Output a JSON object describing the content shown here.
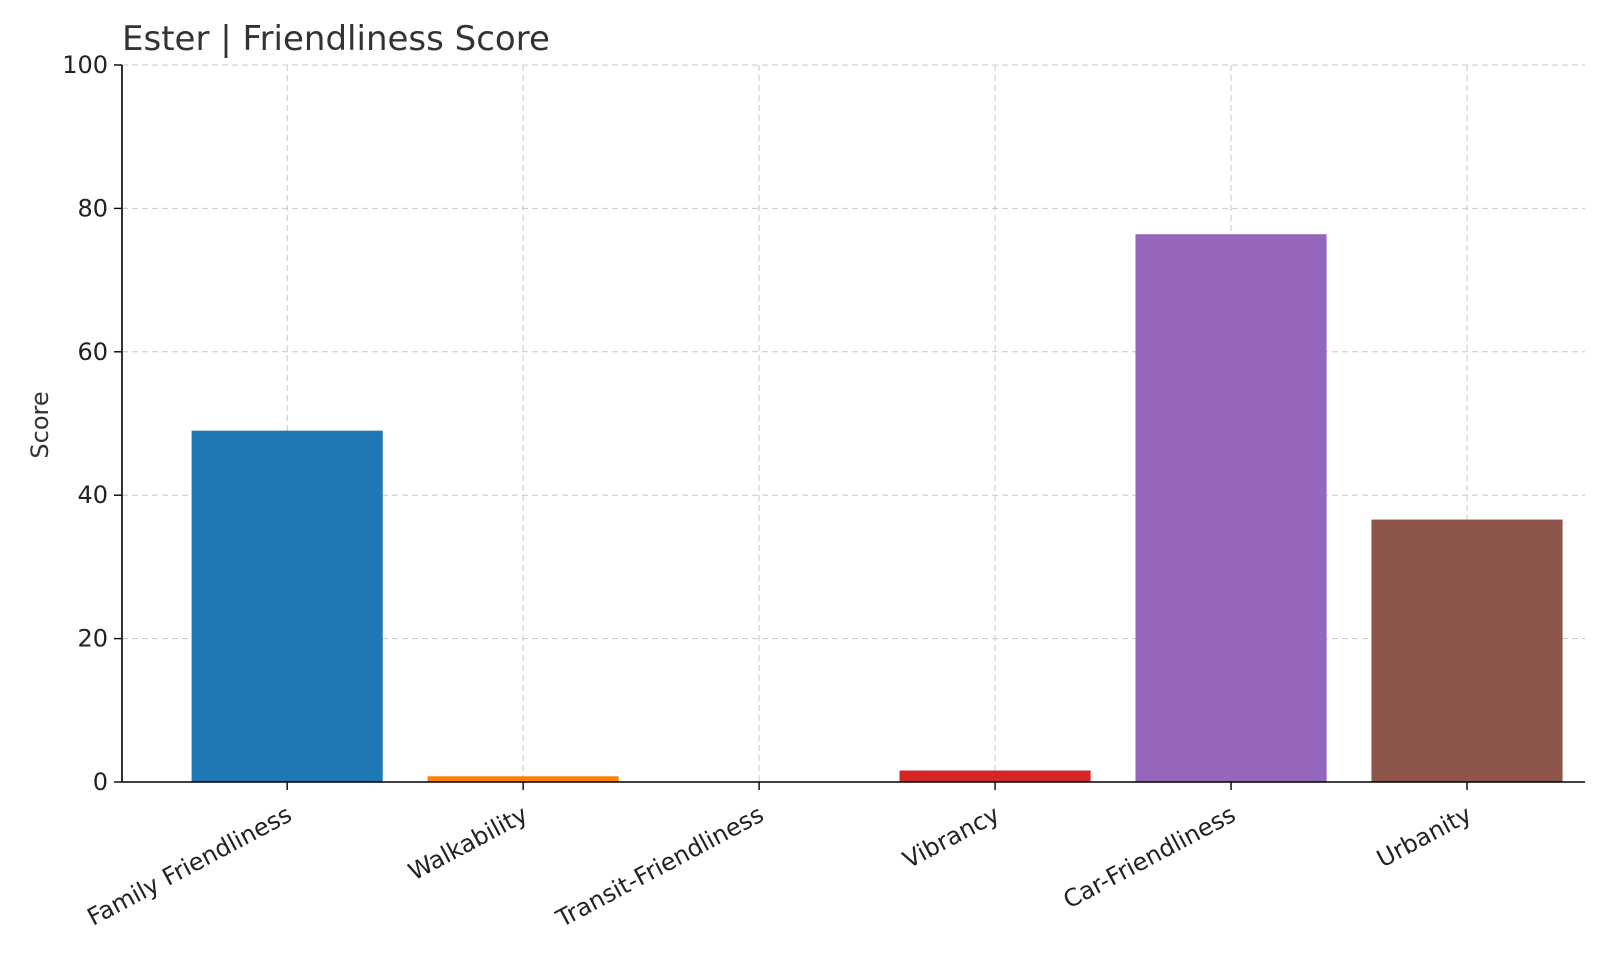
{
  "chart_data": {
    "type": "bar",
    "title": "Ester | Friendliness Score",
    "xlabel": "",
    "ylabel": "Score",
    "ylim": [
      0,
      100
    ],
    "yticks": [
      0,
      20,
      40,
      60,
      80,
      100
    ],
    "grid": true,
    "categories": [
      "Family Friendliness",
      "Walkability",
      "Transit-Friendliness",
      "Vibrancy",
      "Car-Friendliness",
      "Urbanity"
    ],
    "values": [
      49,
      0.8,
      0,
      1.6,
      76.4,
      36.6
    ],
    "colors": [
      "#1f77b4",
      "#ff7f0e",
      "#2ca02c",
      "#d62728",
      "#9467bd",
      "#8c564b"
    ]
  }
}
